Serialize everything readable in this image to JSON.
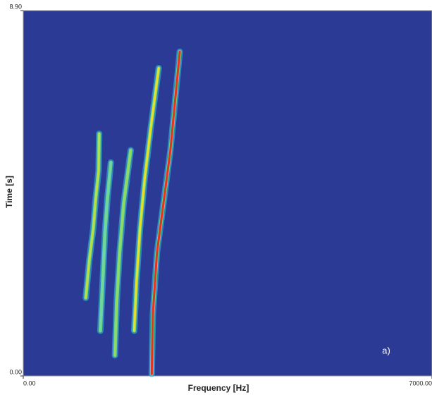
{
  "chart_data": {
    "type": "spectrogram",
    "xlabel": "Frequency [Hz]",
    "ylabel": "Time [s]",
    "annotation": "a)",
    "xlim": [
      0,
      7000
    ],
    "ylim": [
      0,
      8.9
    ],
    "xticks": [
      {
        "value": 0,
        "label": "0.00"
      },
      {
        "value": 7000,
        "label": "7000.00"
      }
    ],
    "yticks": [
      {
        "value": 0,
        "label": "0.00"
      },
      {
        "value": 8.9,
        "label": "8.90"
      }
    ],
    "background": "#2b3a94",
    "halo_color": "#2fb8e0",
    "series": [
      {
        "color": "#b8e040",
        "x": [
          1070,
          1130,
          1200,
          1240,
          1290,
          1300
        ],
        "values": [
          1.9,
          2.8,
          3.6,
          4.3,
          5.0,
          5.9
        ]
      },
      {
        "color": "#6fd8a0",
        "x": [
          1320,
          1360,
          1400,
          1440,
          1500
        ],
        "values": [
          1.1,
          2.3,
          3.5,
          4.3,
          5.2
        ]
      },
      {
        "color": "#8fdc60",
        "x": [
          1570,
          1600,
          1650,
          1720,
          1840
        ],
        "values": [
          0.5,
          1.8,
          3.0,
          4.2,
          5.5
        ]
      },
      {
        "color": "#e8e020",
        "x": [
          1900,
          1940,
          2000,
          2080,
          2180,
          2320
        ],
        "values": [
          1.1,
          2.3,
          3.6,
          4.8,
          6.0,
          7.5
        ]
      },
      {
        "color": "#e8321e",
        "x": [
          2200,
          2220,
          2290,
          2400,
          2520,
          2600,
          2680
        ],
        "values": [
          0.05,
          1.5,
          3.0,
          4.2,
          5.5,
          6.7,
          7.9
        ]
      }
    ]
  }
}
